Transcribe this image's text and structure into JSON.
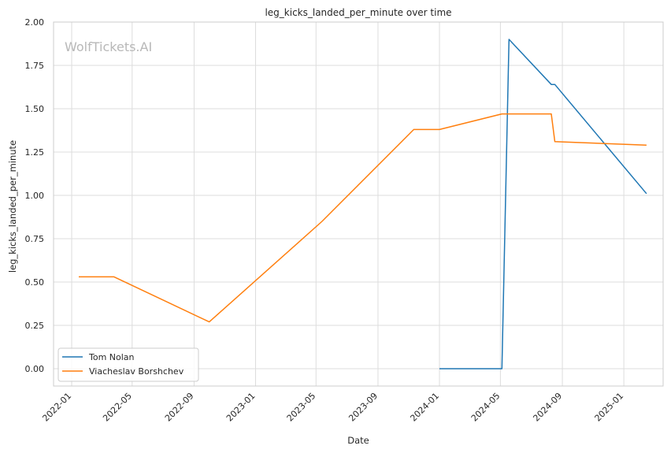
{
  "chart_data": {
    "type": "line",
    "title": "leg_kicks_landed_per_minute over time",
    "xlabel": "Date",
    "ylabel": "leg_kicks_landed_per_minute",
    "watermark": "WolfTickets.AI",
    "grid": true,
    "legend_position": "lower-left",
    "ylim": [
      -0.1,
      2.0
    ],
    "xlim": [
      "2021-11-26",
      "2025-03-20"
    ],
    "yticks": [
      0.0,
      0.25,
      0.5,
      0.75,
      1.0,
      1.25,
      1.5,
      1.75,
      2.0
    ],
    "ytick_labels": [
      "0.00",
      "0.25",
      "0.50",
      "0.75",
      "1.00",
      "1.25",
      "1.50",
      "1.75",
      "2.00"
    ],
    "xticks": [
      "2022-01-01",
      "2022-05-01",
      "2022-09-01",
      "2023-01-01",
      "2023-05-01",
      "2023-09-01",
      "2024-01-01",
      "2024-05-01",
      "2024-09-01",
      "2025-01-01"
    ],
    "xtick_labels": [
      "2022-01",
      "2022-05",
      "2022-09",
      "2023-01",
      "2023-05",
      "2023-09",
      "2024-01",
      "2024-05",
      "2024-09",
      "2025-01"
    ],
    "series": [
      {
        "name": "Tom Nolan",
        "color": "#1f77b4",
        "points": [
          {
            "x": "2024-01-01",
            "y": 0.0
          },
          {
            "x": "2024-05-04",
            "y": 0.0
          },
          {
            "x": "2024-05-18",
            "y": 1.9
          },
          {
            "x": "2024-08-10",
            "y": 1.64
          },
          {
            "x": "2024-08-17",
            "y": 1.64
          },
          {
            "x": "2025-02-15",
            "y": 1.01
          }
        ]
      },
      {
        "name": "Viacheslav Borshchev",
        "color": "#ff7f0e",
        "points": [
          {
            "x": "2022-01-15",
            "y": 0.53
          },
          {
            "x": "2022-03-26",
            "y": 0.53
          },
          {
            "x": "2022-10-01",
            "y": 0.27
          },
          {
            "x": "2023-05-13",
            "y": 0.85
          },
          {
            "x": "2023-11-11",
            "y": 1.38
          },
          {
            "x": "2024-01-01",
            "y": 1.38
          },
          {
            "x": "2024-05-04",
            "y": 1.47
          },
          {
            "x": "2024-08-10",
            "y": 1.47
          },
          {
            "x": "2024-08-17",
            "y": 1.31
          },
          {
            "x": "2025-02-15",
            "y": 1.29
          }
        ]
      }
    ]
  }
}
